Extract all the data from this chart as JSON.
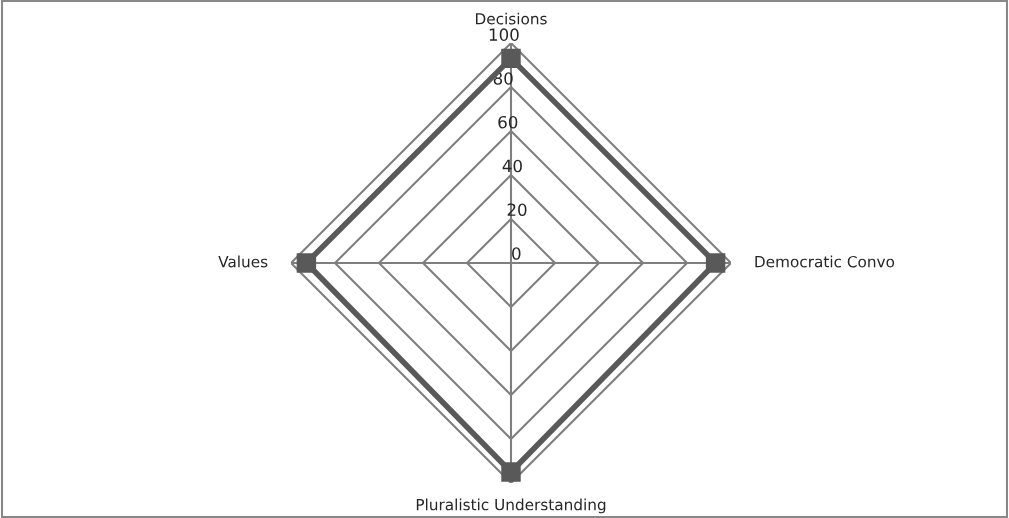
{
  "chart_data": {
    "type": "radar",
    "categories": [
      "Decisions",
      "Democratic Convo",
      "Pluralistic Understanding",
      "Values"
    ],
    "series": [
      {
        "color": "#595959",
        "values": [
          93,
          93,
          95,
          93
        ]
      }
    ],
    "ylim": [
      0,
      100
    ],
    "yticks": [
      0,
      20,
      40,
      60,
      80,
      100
    ],
    "grid": true,
    "marker": "square",
    "line_style": "solid"
  }
}
